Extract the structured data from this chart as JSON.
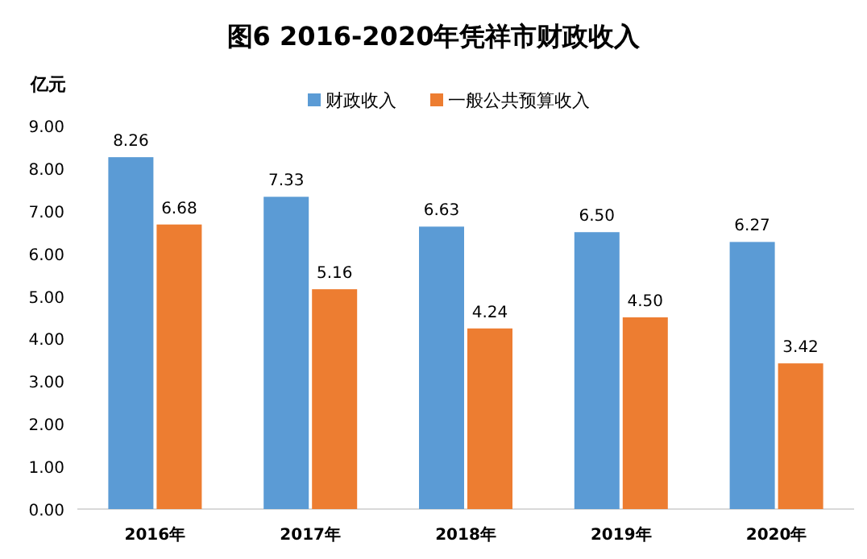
{
  "chart_data": {
    "type": "bar",
    "title": "图6 2016-2020年凭祥市财政收入",
    "ylabel": "亿元",
    "categories": [
      "2016年",
      "2017年",
      "2018年",
      "2019年",
      "2020年"
    ],
    "series": [
      {
        "name": "财政收入",
        "color": "#5b9bd5",
        "values": [
          8.26,
          7.33,
          6.63,
          6.5,
          6.27
        ],
        "value_labels": [
          "8.26",
          "7.33",
          "6.63",
          "6.50",
          "6.27"
        ]
      },
      {
        "name": "一般公共预算收入",
        "color": "#ed7d31",
        "values": [
          6.68,
          5.16,
          4.24,
          4.5,
          3.42
        ],
        "value_labels": [
          "6.68",
          "5.16",
          "4.24",
          "4.50",
          "3.42"
        ]
      }
    ],
    "ylim": [
      0,
      9
    ],
    "yticks": [
      {
        "value": 0,
        "label": "0.00"
      },
      {
        "value": 1,
        "label": "1.00"
      },
      {
        "value": 2,
        "label": "2.00"
      },
      {
        "value": 3,
        "label": "3.00"
      },
      {
        "value": 4,
        "label": "4.00"
      },
      {
        "value": 5,
        "label": "5.00"
      },
      {
        "value": 6,
        "label": "6.00"
      },
      {
        "value": 7,
        "label": "7.00"
      },
      {
        "value": 8,
        "label": "8.00"
      },
      {
        "value": 9,
        "label": "9.00"
      }
    ],
    "legend": "top"
  }
}
